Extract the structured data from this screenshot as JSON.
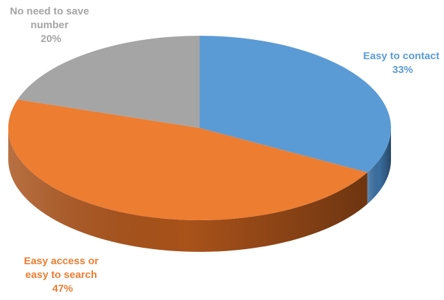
{
  "chart_data": {
    "type": "pie",
    "style": "3d",
    "title": "",
    "slices": [
      {
        "label_lines": [
          "Easy to contact"
        ],
        "value_text": "33%",
        "value": 33,
        "color": "#5b9bd5",
        "side_color": "#3b6fa0"
      },
      {
        "label_lines": [
          "Easy access or",
          "easy to search"
        ],
        "value_text": "47%",
        "value": 47,
        "color": "#ed7d31",
        "side_color": "#a9521a"
      },
      {
        "label_lines": [
          "No need to save",
          "number"
        ],
        "value_text": "20%",
        "value": 20,
        "color": "#a5a5a5",
        "side_color": "#737373"
      }
    ]
  }
}
